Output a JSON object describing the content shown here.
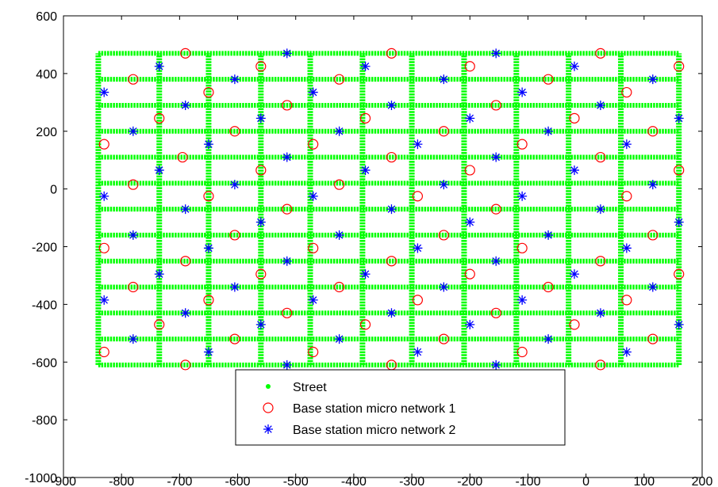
{
  "chart_data": {
    "type": "scatter",
    "title": "",
    "xlabel": "",
    "ylabel": "",
    "xlim": [
      -900,
      200
    ],
    "ylim": [
      -1000,
      600
    ],
    "xticks": [
      -900,
      -800,
      -700,
      -600,
      -500,
      -400,
      -300,
      -200,
      -100,
      0,
      100,
      200
    ],
    "yticks": [
      -1000,
      -800,
      -600,
      -400,
      -200,
      0,
      200,
      400,
      600
    ],
    "grid": false,
    "legend_position": "bottom-center",
    "legend": [
      {
        "label": "Street",
        "marker": "dot",
        "color": "#00ff00"
      },
      {
        "label": "Base station micro network 1",
        "marker": "circle",
        "color": "#ff0000"
      },
      {
        "label": "Base station micro network 2",
        "marker": "asterisk",
        "color": "#0000ff"
      }
    ],
    "streets": {
      "name": "Street",
      "color": "#00ff00",
      "horizontal_y": [
        470,
        380,
        290,
        200,
        110,
        20,
        -70,
        -160,
        -250,
        -340,
        -430,
        -520,
        -610
      ],
      "vertical_x": [
        -840,
        -735,
        -650,
        -560,
        -475,
        -385,
        -300,
        -210,
        -120,
        -30,
        60,
        160
      ],
      "x_range": [
        -840,
        160
      ],
      "y_range": [
        -610,
        470
      ]
    },
    "series": [
      {
        "name": "Base station micro network 1",
        "color": "#ff0000",
        "marker": "circle",
        "points": [
          [
            -690,
            470
          ],
          [
            -335,
            470
          ],
          [
            25,
            470
          ],
          [
            -560,
            425
          ],
          [
            -200,
            425
          ],
          [
            160,
            425
          ],
          [
            -780,
            380
          ],
          [
            -425,
            380
          ],
          [
            -65,
            380
          ],
          [
            -650,
            335
          ],
          [
            -515,
            290
          ],
          [
            -155,
            290
          ],
          [
            70,
            335
          ],
          [
            -735,
            245
          ],
          [
            -380,
            245
          ],
          [
            -20,
            245
          ],
          [
            -830,
            155
          ],
          [
            -605,
            200
          ],
          [
            -245,
            200
          ],
          [
            115,
            200
          ],
          [
            -695,
            110
          ],
          [
            -470,
            155
          ],
          [
            -335,
            110
          ],
          [
            -110,
            155
          ],
          [
            25,
            110
          ],
          [
            -560,
            65
          ],
          [
            -200,
            65
          ],
          [
            160,
            65
          ],
          [
            -780,
            15
          ],
          [
            -425,
            15
          ],
          [
            -650,
            -25
          ],
          [
            -290,
            -25
          ],
          [
            70,
            -25
          ],
          [
            -515,
            -70
          ],
          [
            -155,
            -70
          ],
          [
            -605,
            -160
          ],
          [
            -245,
            -160
          ],
          [
            115,
            -160
          ],
          [
            -830,
            -205
          ],
          [
            -470,
            -205
          ],
          [
            -110,
            -205
          ],
          [
            -690,
            -250
          ],
          [
            -335,
            -250
          ],
          [
            25,
            -250
          ],
          [
            -560,
            -295
          ],
          [
            -200,
            -295
          ],
          [
            160,
            -295
          ],
          [
            -780,
            -340
          ],
          [
            -425,
            -340
          ],
          [
            -65,
            -340
          ],
          [
            -650,
            -385
          ],
          [
            -290,
            -385
          ],
          [
            70,
            -385
          ],
          [
            -515,
            -430
          ],
          [
            -155,
            -430
          ],
          [
            -735,
            -470
          ],
          [
            -380,
            -470
          ],
          [
            -20,
            -470
          ],
          [
            -605,
            -520
          ],
          [
            -245,
            -520
          ],
          [
            115,
            -520
          ],
          [
            -830,
            -565
          ],
          [
            -470,
            -565
          ],
          [
            -110,
            -565
          ],
          [
            -690,
            -610
          ],
          [
            -335,
            -610
          ],
          [
            25,
            -610
          ]
        ]
      },
      {
        "name": "Base station micro network 2",
        "color": "#0000ff",
        "marker": "asterisk",
        "points": [
          [
            -515,
            470
          ],
          [
            -155,
            470
          ],
          [
            -735,
            425
          ],
          [
            -380,
            425
          ],
          [
            -20,
            425
          ],
          [
            -830,
            335
          ],
          [
            -605,
            380
          ],
          [
            -470,
            335
          ],
          [
            -245,
            380
          ],
          [
            -110,
            335
          ],
          [
            115,
            380
          ],
          [
            -690,
            290
          ],
          [
            -335,
            290
          ],
          [
            25,
            290
          ],
          [
            -560,
            245
          ],
          [
            -200,
            245
          ],
          [
            160,
            245
          ],
          [
            -780,
            200
          ],
          [
            -425,
            200
          ],
          [
            -65,
            200
          ],
          [
            -650,
            155
          ],
          [
            -290,
            155
          ],
          [
            70,
            155
          ],
          [
            -515,
            110
          ],
          [
            -155,
            110
          ],
          [
            -735,
            65
          ],
          [
            -380,
            65
          ],
          [
            -20,
            65
          ],
          [
            -605,
            15
          ],
          [
            -245,
            15
          ],
          [
            115,
            15
          ],
          [
            -830,
            -25
          ],
          [
            -470,
            -25
          ],
          [
            -110,
            -25
          ],
          [
            -690,
            -70
          ],
          [
            -335,
            -70
          ],
          [
            25,
            -70
          ],
          [
            -560,
            -115
          ],
          [
            -200,
            -115
          ],
          [
            160,
            -115
          ],
          [
            -780,
            -160
          ],
          [
            -425,
            -160
          ],
          [
            -65,
            -160
          ],
          [
            -650,
            -205
          ],
          [
            -290,
            -205
          ],
          [
            70,
            -205
          ],
          [
            -515,
            -250
          ],
          [
            -155,
            -250
          ],
          [
            -735,
            -295
          ],
          [
            -380,
            -295
          ],
          [
            -20,
            -295
          ],
          [
            -605,
            -340
          ],
          [
            -245,
            -340
          ],
          [
            115,
            -340
          ],
          [
            -830,
            -385
          ],
          [
            -470,
            -385
          ],
          [
            -110,
            -385
          ],
          [
            -690,
            -430
          ],
          [
            -335,
            -430
          ],
          [
            25,
            -430
          ],
          [
            -560,
            -470
          ],
          [
            -200,
            -470
          ],
          [
            160,
            -470
          ],
          [
            -780,
            -520
          ],
          [
            -425,
            -520
          ],
          [
            -65,
            -520
          ],
          [
            -650,
            -565
          ],
          [
            -290,
            -565
          ],
          [
            70,
            -565
          ],
          [
            -515,
            -610
          ],
          [
            -155,
            -610
          ]
        ]
      }
    ]
  }
}
